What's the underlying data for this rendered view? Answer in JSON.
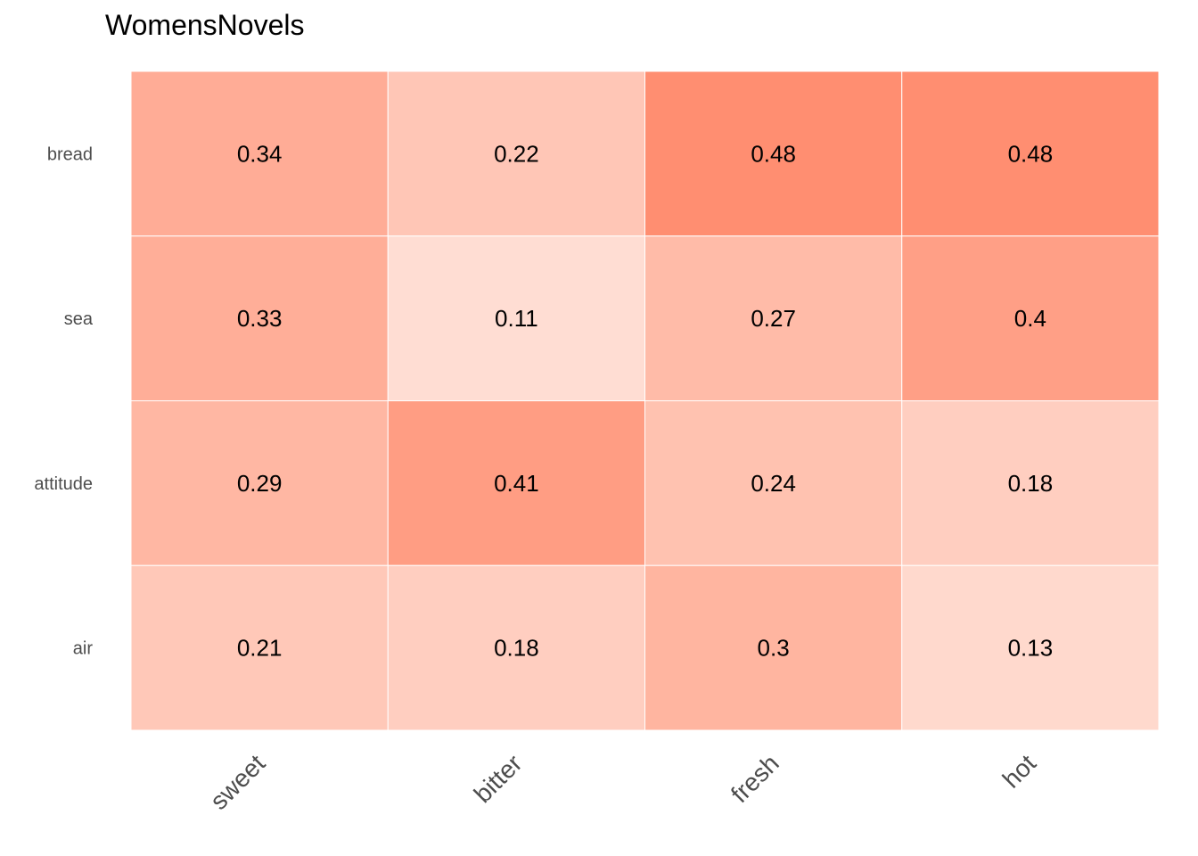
{
  "chart_data": {
    "type": "heatmap",
    "title": "WomensNovels",
    "x_categories": [
      "sweet",
      "bitter",
      "fresh",
      "hot"
    ],
    "y_categories": [
      "bread",
      "sea",
      "attitude",
      "air"
    ],
    "values": [
      [
        0.34,
        0.22,
        0.48,
        0.48
      ],
      [
        0.33,
        0.11,
        0.27,
        0.4
      ],
      [
        0.29,
        0.41,
        0.24,
        0.18
      ],
      [
        0.21,
        0.18,
        0.3,
        0.13
      ]
    ],
    "color_scale": {
      "low": "#fff5f0",
      "high": "#ff7f5e"
    },
    "value_range": [
      0,
      0.55
    ],
    "grid": false,
    "legend": "none"
  }
}
